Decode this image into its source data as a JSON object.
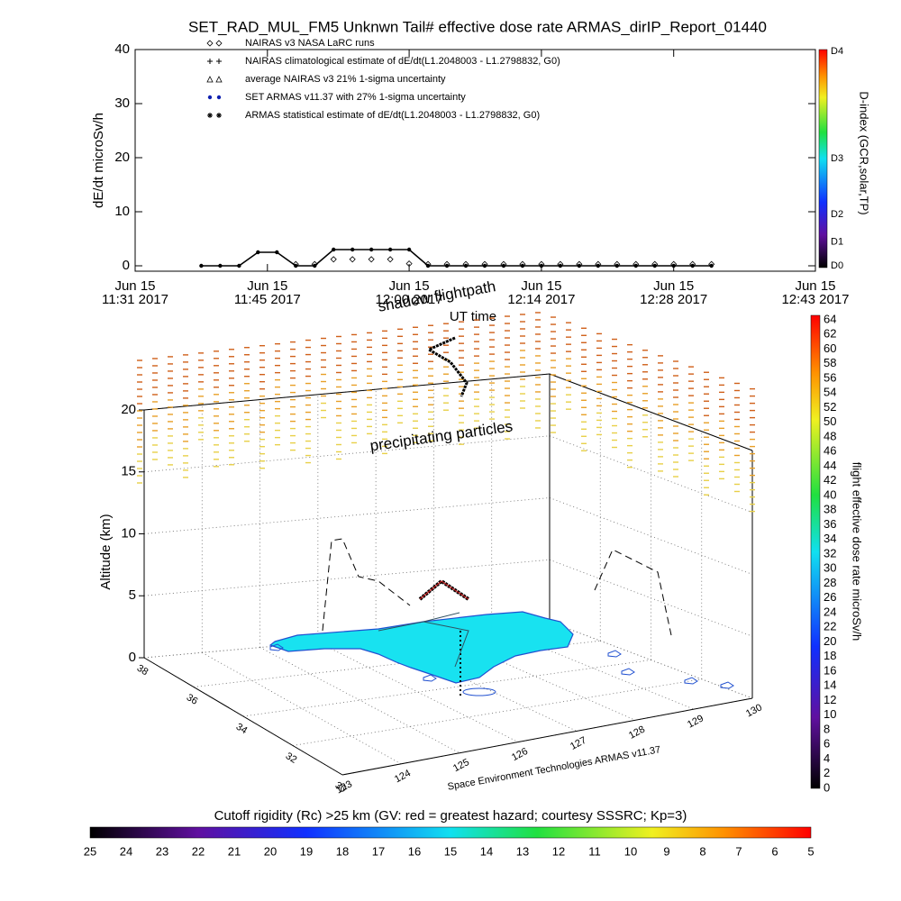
{
  "chart_data": [
    {
      "type": "line",
      "title": "SET_RAD_MUL_FM5 Unknwn Tail#  effective dose rate ARMAS_dirIP_Report_01440",
      "xlabel": "UT time",
      "ylabel": "dE/dt microSv/h",
      "xlim": [
        "2017-06-15 11:31",
        "2017-06-15 12:43"
      ],
      "xticks": [
        {
          "value": "2017-06-15 11:31",
          "label": [
            "Jun 15",
            "11:31 2017"
          ]
        },
        {
          "value": "2017-06-15 11:45",
          "label": [
            "Jun 15",
            "11:45 2017"
          ]
        },
        {
          "value": "2017-06-15 12:00",
          "label": [
            "Jun 15",
            "12:00 2017"
          ]
        },
        {
          "value": "2017-06-15 12:14",
          "label": [
            "Jun 15",
            "12:14 2017"
          ]
        },
        {
          "value": "2017-06-15 12:28",
          "label": [
            "Jun 15",
            "12:28 2017"
          ]
        },
        {
          "value": "2017-06-15 12:43",
          "label": [
            "Jun 15",
            "12:43 2017"
          ]
        }
      ],
      "ylim": [
        -1,
        40
      ],
      "yticks": [
        0,
        10,
        20,
        30,
        40
      ],
      "x": [
        "2017-06-15 11:38",
        "2017-06-15 11:40",
        "2017-06-15 11:42",
        "2017-06-15 11:44",
        "2017-06-15 11:46",
        "2017-06-15 11:48",
        "2017-06-15 11:50",
        "2017-06-15 11:52",
        "2017-06-15 11:54",
        "2017-06-15 11:56",
        "2017-06-15 11:58",
        "2017-06-15 12:00",
        "2017-06-15 12:02",
        "2017-06-15 12:04",
        "2017-06-15 12:06",
        "2017-06-15 12:08",
        "2017-06-15 12:10",
        "2017-06-15 12:12",
        "2017-06-15 12:14",
        "2017-06-15 12:16",
        "2017-06-15 12:18",
        "2017-06-15 12:20",
        "2017-06-15 12:22",
        "2017-06-15 12:24",
        "2017-06-15 12:26",
        "2017-06-15 12:28",
        "2017-06-15 12:30",
        "2017-06-15 12:32"
      ],
      "series": [
        {
          "name": "NAIRAS v3 NASA LaRC runs",
          "marker": "diamond",
          "color": "#000000",
          "values": [
            null,
            null,
            null,
            null,
            null,
            0.3,
            0.3,
            1.2,
            1.2,
            1.2,
            1.2,
            0.4,
            0.3,
            0.3,
            0.3,
            0.3,
            0.3,
            0.3,
            0.3,
            0.3,
            0.3,
            0.3,
            0.3,
            0.3,
            0.3,
            0.3,
            0.3,
            0.3
          ]
        },
        {
          "name": "NAIRAS climatological estimate of dE/dt(L1.2048003 - L1.2798832, G0)",
          "marker": "plus",
          "color": "#000000"
        },
        {
          "name": "average NAIRAS v3 21% 1-sigma uncertainty",
          "marker": "triangle",
          "color": "#000000"
        },
        {
          "name": "SET ARMAS v11.37 with 27% 1-sigma uncertainty",
          "marker": "dot",
          "color": "#1020b0",
          "values": [
            0,
            0,
            0,
            2.5,
            2.5,
            0,
            0,
            3,
            3,
            3,
            3,
            3,
            0,
            0,
            0,
            0,
            0,
            0,
            0,
            0,
            0,
            0,
            0,
            0,
            0,
            0,
            0,
            0
          ]
        },
        {
          "name": "ARMAS statistical estimate of dE/dt(L1.2048003 - L1.2798832, G0)",
          "marker": "star",
          "color": "#000000"
        }
      ],
      "colorbar": {
        "label": "D-index (GCR,solar,TP)",
        "ticks": [
          "D0",
          "D1",
          "D2",
          "D3",
          "D4"
        ]
      }
    },
    {
      "type": "surface3d",
      "zlabel": "Altitude (km)",
      "zlim": [
        0,
        20
      ],
      "zticks": [
        0,
        5,
        10,
        15,
        20
      ],
      "latlim": [
        30,
        38
      ],
      "latticks": [
        30,
        32,
        34,
        36,
        38
      ],
      "lonlim": [
        123,
        130
      ],
      "lonticks": [
        123,
        124,
        125,
        126,
        127,
        128,
        129,
        130
      ],
      "annotations": [
        "shadow flightpath",
        "precipitating particles",
        "Space Environment Technologies ARMAS v11.37"
      ],
      "colorbar": {
        "label": "flight effective dose rate microSv/h",
        "lim": [
          0,
          64
        ],
        "ticks": [
          0,
          2,
          4,
          6,
          8,
          10,
          12,
          14,
          16,
          18,
          20,
          22,
          24,
          26,
          28,
          30,
          32,
          34,
          36,
          38,
          40,
          42,
          44,
          46,
          48,
          50,
          52,
          54,
          56,
          58,
          60,
          62,
          64
        ]
      },
      "colorbar2": {
        "title": "Cutoff rigidity (Rc) >25 km (GV: red = greatest hazard; courtesy SSSRC; Kp=3)",
        "lim": [
          25,
          5
        ],
        "ticks": [
          25,
          24,
          23,
          22,
          21,
          20,
          19,
          18,
          17,
          16,
          15,
          14,
          13,
          12,
          11,
          10,
          9,
          8,
          7,
          6,
          5
        ]
      }
    }
  ]
}
